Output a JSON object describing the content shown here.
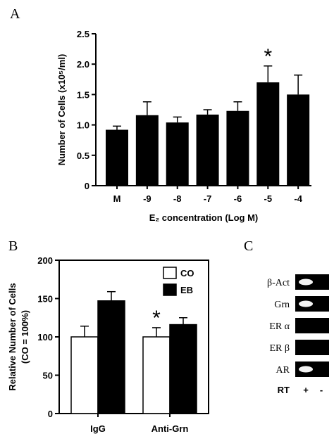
{
  "panel_a": {
    "letter": "A"
  },
  "panel_b": {
    "letter": "B"
  },
  "panel_c": {
    "letter": "C",
    "rows": [
      "β-Act",
      "Grn",
      "ER α",
      "ER β",
      "AR"
    ],
    "rt_label": "RT",
    "lane_labels": [
      "+",
      "-"
    ],
    "bands_present": [
      [
        true,
        false
      ],
      [
        true,
        false
      ],
      [
        false,
        false
      ],
      [
        false,
        false
      ],
      [
        true,
        false
      ]
    ]
  },
  "chart_data": [
    {
      "type": "bar",
      "panel": "A",
      "categories": [
        "M",
        "-9",
        "-8",
        "-7",
        "-6",
        "-5",
        "-4"
      ],
      "values": [
        0.92,
        1.16,
        1.04,
        1.17,
        1.23,
        1.7,
        1.5
      ],
      "errors": [
        0.06,
        0.22,
        0.09,
        0.08,
        0.15,
        0.27,
        0.32
      ],
      "significant": [
        false,
        false,
        false,
        false,
        false,
        true,
        false
      ],
      "significance_marker": "*",
      "ylabel": "Number of Cells (x10⁵/ml)",
      "xlabel": "E₂ concentration (Log M)",
      "ylim": [
        0,
        2.5
      ],
      "yticks": [
        "0",
        "0.5",
        "1.0",
        "1.5",
        "2.0",
        "2.5"
      ],
      "bar_color": "#000000"
    },
    {
      "type": "bar",
      "panel": "B",
      "categories": [
        "IgG",
        "Anti-Grn"
      ],
      "series": [
        {
          "name": "CO",
          "values": [
            100,
            100
          ],
          "errors": [
            14,
            12
          ],
          "color": "#ffffff"
        },
        {
          "name": "EB",
          "values": [
            147,
            116
          ],
          "errors": [
            12,
            9
          ],
          "color": "#000000"
        }
      ],
      "significant": [
        [
          false,
          true
        ],
        [
          false,
          false
        ]
      ],
      "significance_marker": "*",
      "ylabel": "Relative Number of Cells",
      "ylabel2": "(CO = 100%)",
      "ylim": [
        0,
        200
      ],
      "yticks": [
        "0",
        "50",
        "100",
        "150",
        "200"
      ],
      "legend_position": "top-right"
    }
  ]
}
